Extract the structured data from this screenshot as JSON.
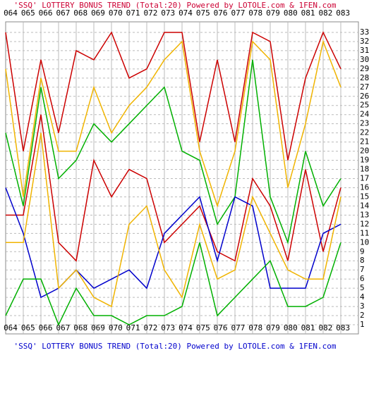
{
  "chart_data": {
    "type": "line",
    "title": "'SSQ' LOTTERY BONUS TREND (Total:20)  Powered by LOTOLE.com & 1FEN.com",
    "categories": [
      "064",
      "065",
      "066",
      "067",
      "068",
      "069",
      "070",
      "071",
      "072",
      "073",
      "074",
      "075",
      "076",
      "077",
      "078",
      "079",
      "080",
      "081",
      "082",
      "083"
    ],
    "series": [
      {
        "color": "#cc0000",
        "values": [
          33,
          20,
          30,
          22,
          31,
          30,
          33,
          28,
          29,
          33,
          33,
          21,
          30,
          21,
          33,
          32,
          19,
          28,
          33,
          29
        ]
      },
      {
        "color": "#f0b400",
        "values": [
          29,
          15,
          28,
          20,
          20,
          27,
          22,
          25,
          27,
          30,
          32,
          20,
          14,
          20,
          32,
          30,
          16,
          23,
          32,
          27
        ]
      },
      {
        "color": "#00b000",
        "values": [
          22,
          14,
          27,
          17,
          19,
          23,
          21,
          23,
          25,
          27,
          20,
          19,
          12,
          15,
          30,
          15,
          10,
          20,
          14,
          17
        ]
      },
      {
        "color": "#cc0000",
        "values": [
          13,
          13,
          24,
          10,
          8,
          19,
          15,
          18,
          17,
          10,
          12,
          14,
          9,
          8,
          17,
          14,
          8,
          18,
          9,
          16
        ]
      },
      {
        "color": "#0000cc",
        "values": [
          16,
          11,
          4,
          5,
          7,
          5,
          6,
          7,
          5,
          11,
          13,
          15,
          8,
          15,
          14,
          5,
          5,
          5,
          11,
          12
        ]
      },
      {
        "color": "#f0b400",
        "values": [
          10,
          10,
          22,
          5,
          7,
          4,
          3,
          12,
          14,
          7,
          4,
          12,
          6,
          7,
          15,
          11,
          7,
          6,
          6,
          15
        ]
      },
      {
        "color": "#00b000",
        "values": [
          2,
          6,
          6,
          1,
          5,
          2,
          2,
          1,
          2,
          2,
          3,
          10,
          2,
          4,
          6,
          8,
          3,
          3,
          4,
          10
        ]
      }
    ],
    "ylim": [
      0,
      34
    ],
    "yticks": [
      1,
      2,
      3,
      4,
      5,
      6,
      7,
      8,
      9,
      10,
      11,
      12,
      13,
      14,
      15,
      16,
      17,
      18,
      19,
      20,
      21,
      22,
      23,
      24,
      25,
      26,
      27,
      28,
      29,
      30,
      31,
      32,
      33
    ],
    "grid": true
  }
}
